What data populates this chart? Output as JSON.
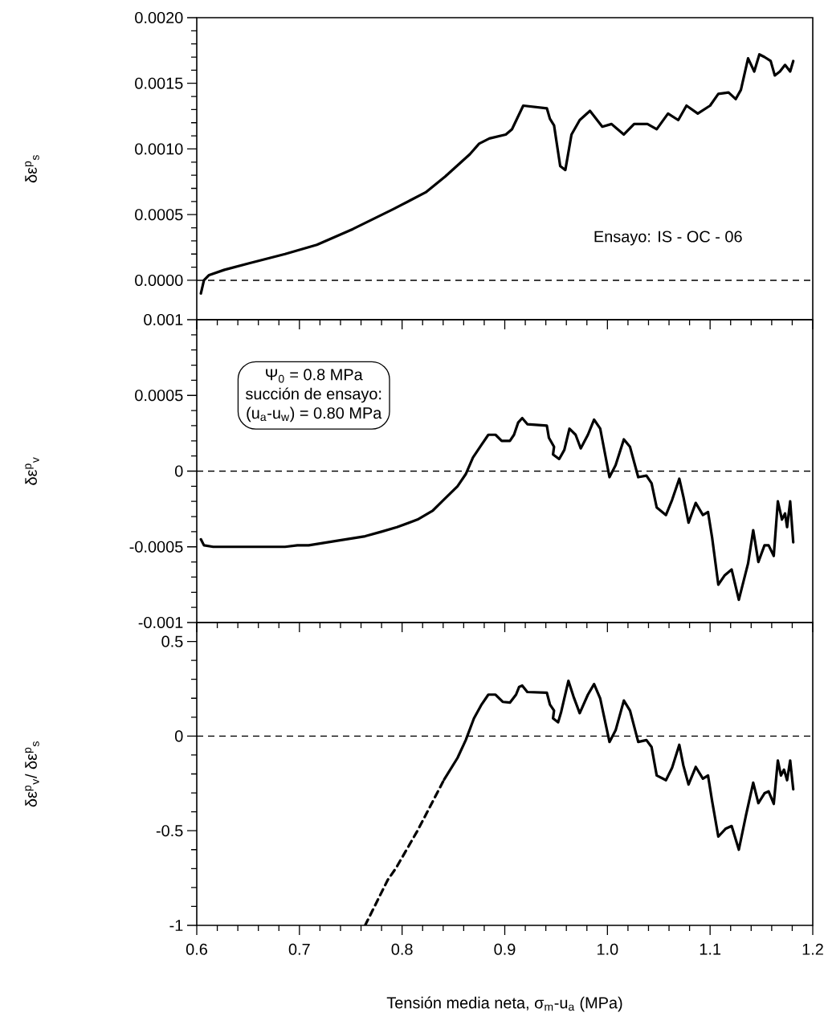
{
  "chart_data": [
    {
      "type": "line",
      "ylabel": "δε$^{p}$$_{s}$",
      "xlim": [
        0.6,
        1.2
      ],
      "ylim": [
        -0.0003,
        0.002
      ],
      "xticks": [
        0.6,
        0.7,
        0.8,
        0.9,
        1.0,
        1.1,
        1.2
      ],
      "yticks": [
        {
          "value": 0,
          "label": "0.0000"
        },
        {
          "value": 0.0005,
          "label": "0.0005"
        },
        {
          "value": 0.001,
          "label": "0.0010"
        },
        {
          "value": 0.0015,
          "label": "0.0015"
        },
        {
          "value": 0.002,
          "label": "0.0020"
        }
      ],
      "tick_labels": "y",
      "marker": "none",
      "ref_lines": [
        {
          "axis": "y",
          "value": 0,
          "line_style": "dashed"
        }
      ],
      "annotations": [
        "Ensayo: IS - OC - 06"
      ],
      "series": [
        {
          "color": "#000000",
          "line_style": "solid",
          "x": [
            0.604,
            0.607,
            0.612,
            0.627,
            0.651,
            0.686,
            0.717,
            0.752,
            0.791,
            0.823,
            0.842,
            0.866,
            0.875,
            0.885,
            0.901,
            0.907,
            0.918,
            0.941,
            0.944,
            0.948,
            0.954,
            0.959,
            0.965,
            0.973,
            0.983,
            0.995,
            1.004,
            1.016,
            1.026,
            1.039,
            1.048,
            1.059,
            1.069,
            1.077,
            1.088,
            1.1,
            1.108,
            1.118,
            1.125,
            1.13,
            1.137,
            1.143,
            1.148,
            1.153,
            1.159,
            1.163,
            1.168,
            1.173,
            1.178,
            1.181
          ],
          "values": [
            -0.0001,
            0.0,
            4e-05,
            8e-05,
            0.00013,
            0.0002,
            0.00027,
            0.00039,
            0.00054,
            0.00067,
            0.00079,
            0.00096,
            0.00104,
            0.00108,
            0.00111,
            0.00115,
            0.00133,
            0.00131,
            0.00123,
            0.00118,
            0.00087,
            0.00084,
            0.00111,
            0.00122,
            0.00129,
            0.00117,
            0.00119,
            0.00111,
            0.00119,
            0.00119,
            0.00115,
            0.00127,
            0.00122,
            0.00133,
            0.00127,
            0.00133,
            0.00142,
            0.00143,
            0.00138,
            0.00145,
            0.00169,
            0.00159,
            0.00172,
            0.0017,
            0.00167,
            0.00156,
            0.00159,
            0.00164,
            0.00159,
            0.00167
          ]
        }
      ]
    },
    {
      "type": "line",
      "ylabel": "δε$^{p}$$_{v}$",
      "xlim": [
        0.6,
        1.2
      ],
      "ylim": [
        -0.001,
        0.001
      ],
      "xticks": [
        0.6,
        0.7,
        0.8,
        0.9,
        1.0,
        1.1,
        1.2
      ],
      "yticks": [
        -0.001,
        -0.0005,
        0,
        0.0005,
        0.001
      ],
      "tick_labels": "y",
      "marker": "none",
      "ref_lines": [
        {
          "axis": "y",
          "value": 0,
          "line_style": "dashed"
        }
      ],
      "annotations": [
        "Ψ$_{0}$ = 0.8 MPa",
        "succión de ensayo:",
        "(u$_{a}$-u$_{w}$) = 0.80 MPa"
      ],
      "series": [
        {
          "color": "#000000",
          "line_style": "solid",
          "x": [
            0.604,
            0.607,
            0.616,
            0.686,
            0.698,
            0.709,
            0.737,
            0.764,
            0.78,
            0.795,
            0.815,
            0.83,
            0.842,
            0.854,
            0.862,
            0.869,
            0.877,
            0.884,
            0.891,
            0.897,
            0.905,
            0.909,
            0.913,
            0.917,
            0.922,
            0.941,
            0.943,
            0.948,
            0.947,
            0.953,
            0.958,
            0.963,
            0.969,
            0.974,
            0.981,
            0.987,
            0.993,
            1.002,
            1.008,
            1.016,
            1.022,
            1.03,
            1.038,
            1.043,
            1.048,
            1.057,
            1.063,
            1.07,
            1.074,
            1.079,
            1.086,
            1.093,
            1.098,
            1.102,
            1.108,
            1.114,
            1.121,
            1.128,
            1.137,
            1.142,
            1.147,
            1.153,
            1.157,
            1.162,
            1.166,
            1.17,
            1.173,
            1.175,
            1.178,
            1.181
          ],
          "values": [
            -0.00045,
            -0.00049,
            -0.0005,
            -0.0005,
            -0.00049,
            -0.00049,
            -0.00046,
            -0.00043,
            -0.0004,
            -0.00037,
            -0.00032,
            -0.00026,
            -0.00018,
            -0.0001,
            -2e-05,
            9e-05,
            0.00017,
            0.00024,
            0.00024,
            0.0002,
            0.0002,
            0.00024,
            0.00032,
            0.00035,
            0.00031,
            0.0003,
            0.00022,
            0.00016,
            0.00011,
            8e-05,
            0.00014,
            0.00028,
            0.00024,
            0.00015,
            0.00024,
            0.00034,
            0.00028,
            -4e-05,
            4e-05,
            0.00021,
            0.00016,
            -4e-05,
            -3e-05,
            -8e-05,
            -0.00024,
            -0.00029,
            -0.00019,
            -5e-05,
            -0.00017,
            -0.00034,
            -0.00021,
            -0.00029,
            -0.00027,
            -0.00044,
            -0.00075,
            -0.00069,
            -0.00065,
            -0.00085,
            -0.00061,
            -0.00039,
            -0.0006,
            -0.00049,
            -0.00049,
            -0.00056,
            -0.0002,
            -0.00032,
            -0.00028,
            -0.00037,
            -0.0002,
            -0.00047
          ]
        }
      ]
    },
    {
      "type": "line",
      "ylabel": "δε$^{p}$$_{v}$/ δε$^{p}$$_{s}$",
      "xlabel": "Tensión media neta, σ$_{m}$-u$_{a}$ (MPa)",
      "xlim": [
        0.6,
        1.2
      ],
      "ylim": [
        -1,
        0.6
      ],
      "xticks": [
        0.6,
        0.7,
        0.8,
        0.9,
        {
          "value": 1.0,
          "label": "1.0"
        },
        1.1,
        1.2
      ],
      "yticks": [
        -1,
        -0.5,
        0,
        0.5
      ],
      "marker": "none",
      "ref_lines": [
        {
          "axis": "y",
          "value": 0,
          "line_style": "dashed"
        }
      ],
      "series": [
        {
          "color": "#000000",
          "line_style": "dashed",
          "x": [
            0.764,
            0.786,
            0.794,
            0.815,
            0.841
          ],
          "values": [
            -1.0,
            -0.76,
            -0.698,
            -0.5,
            -0.229
          ]
        },
        {
          "color": "#000000",
          "line_style": "solid",
          "x": [
            0.841,
            0.854,
            0.862,
            0.87,
            0.877,
            0.884,
            0.891,
            0.898,
            0.905,
            0.911,
            0.914,
            0.917,
            0.922,
            0.941,
            0.944,
            0.948,
            0.947,
            0.952,
            0.955,
            0.962,
            0.967,
            0.973,
            0.981,
            0.987,
            0.993,
            1.002,
            1.008,
            1.016,
            1.022,
            1.03,
            1.038,
            1.043,
            1.048,
            1.057,
            1.063,
            1.07,
            1.074,
            1.079,
            1.086,
            1.093,
            1.098,
            1.102,
            1.108,
            1.115,
            1.121,
            1.128,
            1.135,
            1.142,
            1.147,
            1.153,
            1.157,
            1.162,
            1.166,
            1.169,
            1.172,
            1.175,
            1.178,
            1.181
          ],
          "values": [
            -0.229,
            -0.115,
            -0.021,
            0.094,
            0.163,
            0.219,
            0.219,
            0.181,
            0.177,
            0.219,
            0.26,
            0.267,
            0.233,
            0.229,
            0.167,
            0.135,
            0.094,
            0.073,
            0.129,
            0.292,
            0.208,
            0.121,
            0.219,
            0.275,
            0.198,
            -0.031,
            0.031,
            0.188,
            0.135,
            -0.031,
            -0.021,
            -0.058,
            -0.208,
            -0.233,
            -0.167,
            -0.046,
            -0.156,
            -0.256,
            -0.163,
            -0.225,
            -0.208,
            -0.344,
            -0.531,
            -0.49,
            -0.475,
            -0.6,
            -0.417,
            -0.246,
            -0.354,
            -0.302,
            -0.292,
            -0.358,
            -0.129,
            -0.208,
            -0.177,
            -0.233,
            -0.129,
            -0.281
          ]
        }
      ]
    }
  ]
}
